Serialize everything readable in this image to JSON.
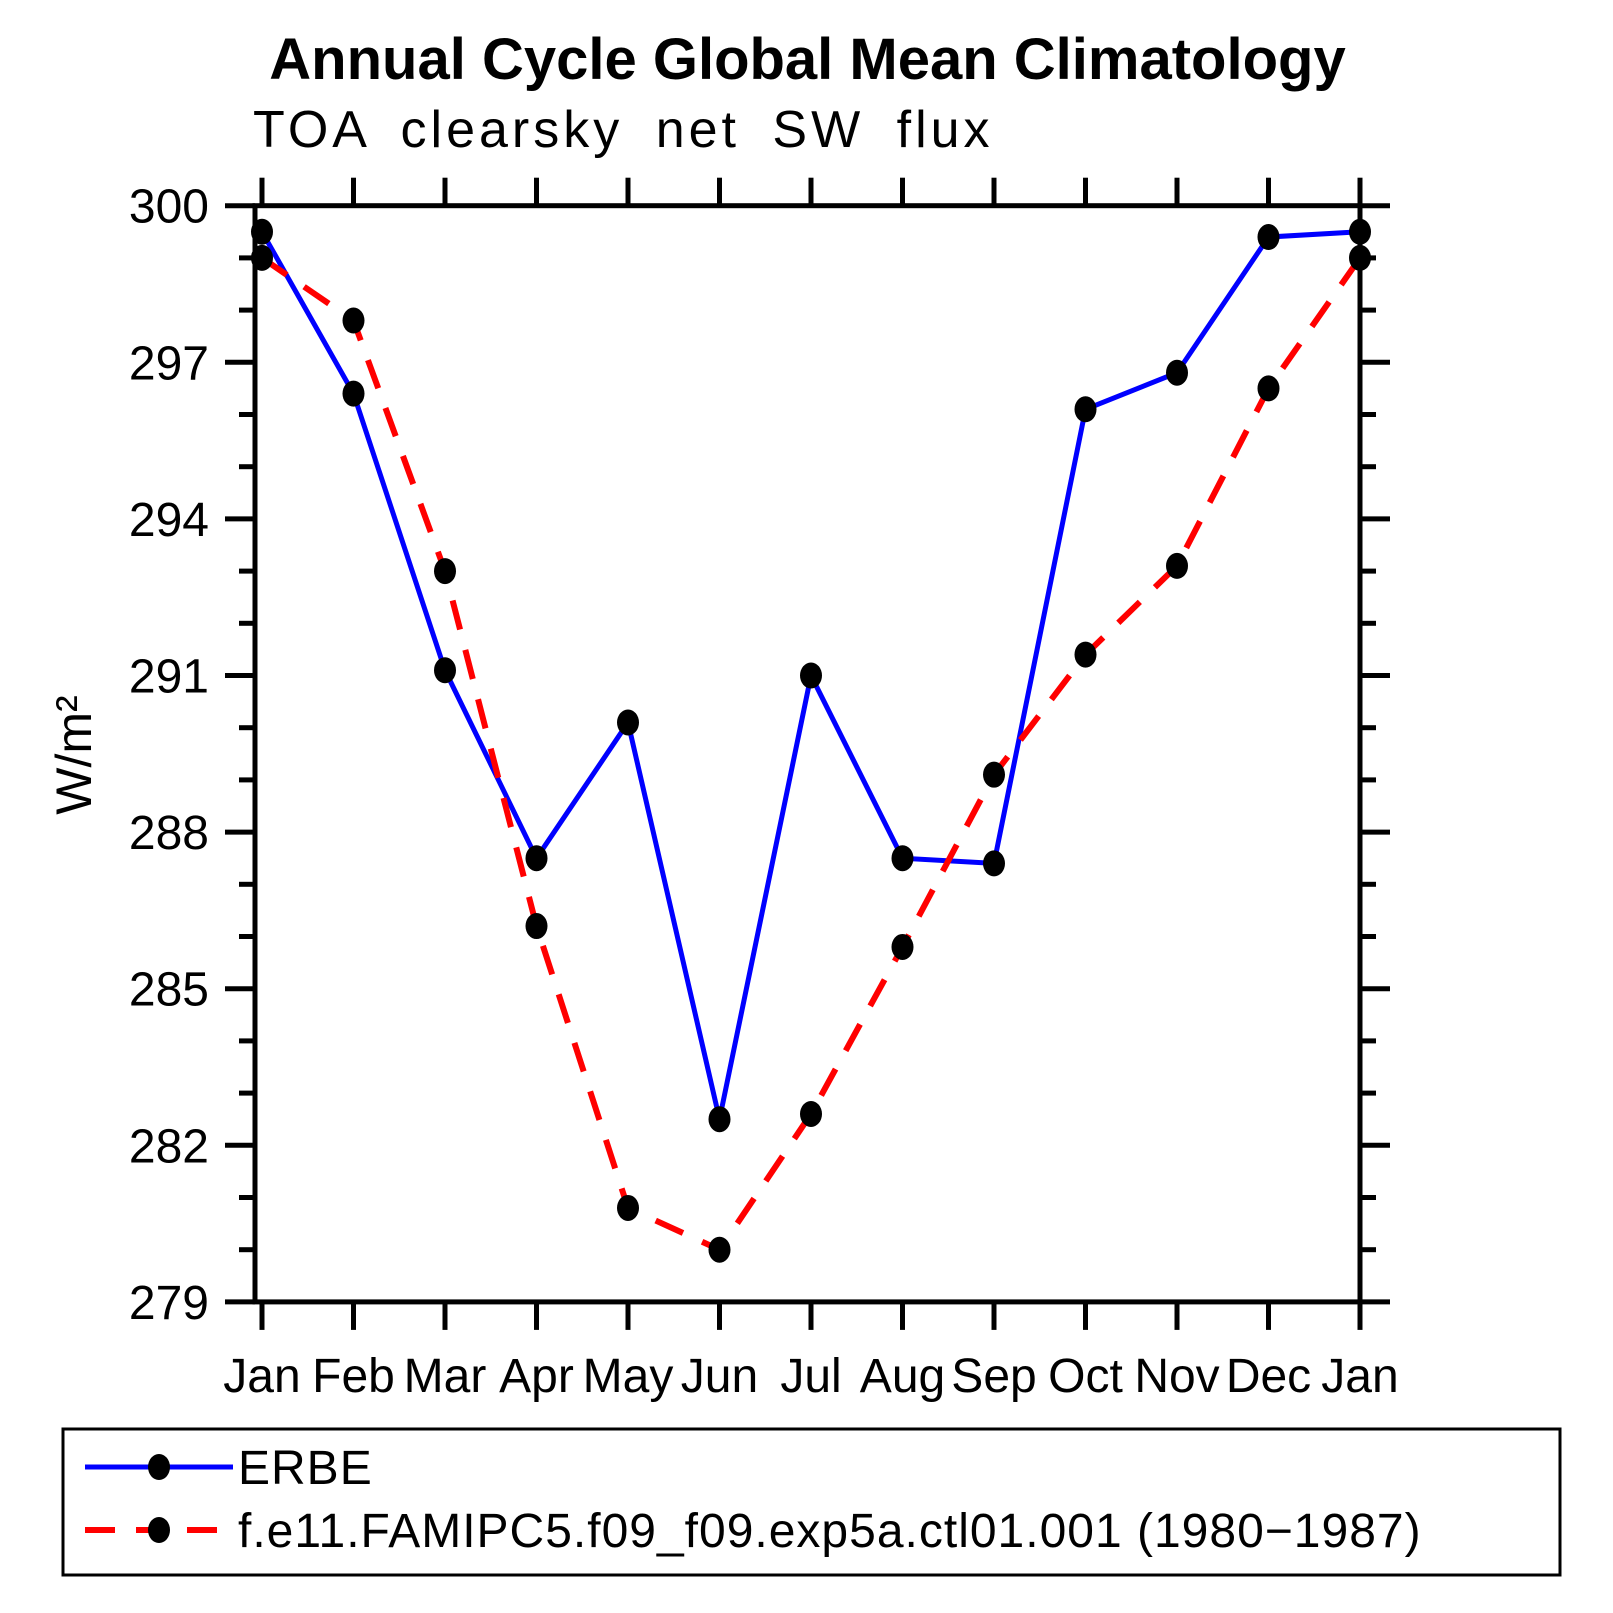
{
  "page": {
    "background": "#ffffff"
  },
  "chart_data": {
    "type": "line",
    "title": "Annual Cycle Global Mean Climatology",
    "subtitle": "TOA clearsky net SW flux",
    "ylabel": "W/m²",
    "xlabel": "",
    "categories": [
      "Jan",
      "Feb",
      "Mar",
      "Apr",
      "May",
      "Jun",
      "Jul",
      "Aug",
      "Sep",
      "Oct",
      "Nov",
      "Dec",
      "Jan"
    ],
    "ylim": [
      279,
      300
    ],
    "ytick_major_step": 3,
    "ytick_minor_step": 1,
    "ytick_major_labels": [
      "279",
      "282",
      "285",
      "288",
      "291",
      "294",
      "297",
      "300"
    ],
    "grid": false,
    "legend_position": "bottom-left boxed",
    "axis_color": "#000000",
    "marker_color": "#000000",
    "series": [
      {
        "name": "ERBE",
        "style": "solid",
        "color": "#0000ff",
        "marker": "filled-black-circle",
        "values": [
          299.5,
          296.4,
          291.1,
          287.5,
          290.1,
          282.5,
          291.0,
          287.5,
          287.4,
          296.1,
          296.8,
          299.4,
          299.5
        ]
      },
      {
        "name": "f.e11.FAMIPC5.f09_f09.exp5a.ctl01.001 (1980−1987)",
        "style": "dashed",
        "color": "#ff0000",
        "marker": "filled-black-circle",
        "values": [
          299.0,
          297.8,
          293.0,
          286.2,
          280.8,
          280.0,
          282.6,
          285.8,
          289.1,
          291.4,
          293.1,
          296.5,
          299.0
        ]
      }
    ]
  }
}
